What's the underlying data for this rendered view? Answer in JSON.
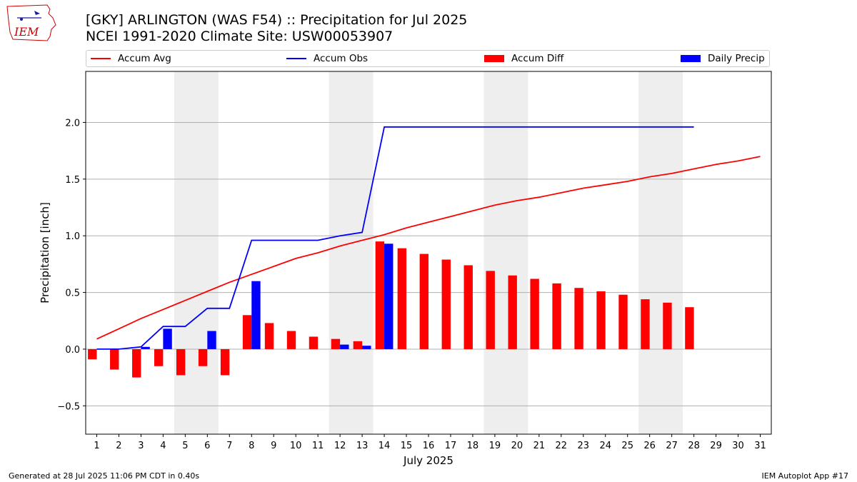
{
  "header": {
    "title_line1": "[GKY] ARLINGTON (WAS F54) :: Precipitation for Jul 2025",
    "title_line2": "NCEI 1991-2020 Climate Site: USW00053907",
    "logo_text": "IEM"
  },
  "footer": {
    "left": "Generated at 28 Jul 2025 11:06 PM CDT in 0.40s",
    "right": "IEM Autoplot App #17"
  },
  "colors": {
    "avg": "#ff0000",
    "obs": "#0000ff",
    "diff": "#ff0000",
    "daily": "#0000ff",
    "weekend": "#eeeeee",
    "grid": "#b0b0b0"
  },
  "chart_data": {
    "type": "bar",
    "xlabel": "July 2025",
    "ylabel": "Precipitation [inch]",
    "ylim": [
      -0.75,
      2.45
    ],
    "xlim": [
      0.5,
      31.5
    ],
    "yticks": [
      -0.5,
      0.0,
      0.5,
      1.0,
      1.5,
      2.0
    ],
    "ytick_labels": [
      "−0.5",
      "0.0",
      "0.5",
      "1.0",
      "1.5",
      "2.0"
    ],
    "xticks": [
      1,
      2,
      3,
      4,
      5,
      6,
      7,
      8,
      9,
      10,
      11,
      12,
      13,
      14,
      15,
      16,
      17,
      18,
      19,
      20,
      21,
      22,
      23,
      24,
      25,
      26,
      27,
      28,
      29,
      30,
      31
    ],
    "xtick_labels": [
      "1",
      "2",
      "3",
      "4",
      "5",
      "6",
      "7",
      "8",
      "9",
      "10",
      "11",
      "12",
      "13",
      "14",
      "15",
      "16",
      "17",
      "18",
      "19",
      "20",
      "21",
      "22",
      "23",
      "24",
      "25",
      "26",
      "27",
      "28",
      "29",
      "30",
      "31"
    ],
    "grid": "horizontal",
    "weekend_shading": [
      [
        5,
        6
      ],
      [
        12,
        13
      ],
      [
        19,
        20
      ],
      [
        26,
        27
      ]
    ],
    "legend": {
      "position": "top",
      "entries": [
        "Accum Avg",
        "Accum Obs",
        "Accum Diff",
        "Daily Precip"
      ]
    },
    "series": [
      {
        "name": "Accum Avg",
        "kind": "line",
        "x": [
          1,
          2,
          3,
          4,
          5,
          6,
          7,
          8,
          9,
          10,
          11,
          12,
          13,
          14,
          15,
          16,
          17,
          18,
          19,
          20,
          21,
          22,
          23,
          24,
          25,
          26,
          27,
          28,
          29,
          30,
          31
        ],
        "values": [
          0.09,
          0.18,
          0.27,
          0.35,
          0.43,
          0.51,
          0.59,
          0.66,
          0.73,
          0.8,
          0.85,
          0.91,
          0.96,
          1.01,
          1.07,
          1.12,
          1.17,
          1.22,
          1.27,
          1.31,
          1.34,
          1.38,
          1.42,
          1.45,
          1.48,
          1.52,
          1.55,
          1.59,
          1.63,
          1.66,
          1.7
        ]
      },
      {
        "name": "Accum Obs",
        "kind": "line",
        "x": [
          1,
          2,
          3,
          4,
          5,
          6,
          7,
          8,
          9,
          10,
          11,
          12,
          13,
          14,
          15,
          16,
          17,
          18,
          19,
          20,
          21,
          22,
          23,
          24,
          25,
          26,
          27,
          28
        ],
        "values": [
          0.0,
          0.0,
          0.02,
          0.2,
          0.2,
          0.36,
          0.36,
          0.96,
          0.96,
          0.96,
          0.96,
          1.0,
          1.03,
          1.96,
          1.96,
          1.96,
          1.96,
          1.96,
          1.96,
          1.96,
          1.96,
          1.96,
          1.96,
          1.96,
          1.96,
          1.96,
          1.96,
          1.96
        ]
      },
      {
        "name": "Accum Diff",
        "kind": "bar",
        "x": [
          1,
          2,
          3,
          4,
          5,
          6,
          7,
          8,
          9,
          10,
          11,
          12,
          13,
          14,
          15,
          16,
          17,
          18,
          19,
          20,
          21,
          22,
          23,
          24,
          25,
          26,
          27,
          28
        ],
        "values": [
          -0.09,
          -0.18,
          -0.25,
          -0.15,
          -0.23,
          -0.15,
          -0.23,
          0.3,
          0.23,
          0.16,
          0.11,
          0.09,
          0.07,
          0.95,
          0.89,
          0.84,
          0.79,
          0.74,
          0.69,
          0.65,
          0.62,
          0.58,
          0.54,
          0.51,
          0.48,
          0.44,
          0.41,
          0.37
        ]
      },
      {
        "name": "Daily Precip",
        "kind": "bar",
        "x": [
          1,
          2,
          3,
          4,
          5,
          6,
          7,
          8,
          9,
          10,
          11,
          12,
          13,
          14,
          15,
          16,
          17,
          18,
          19,
          20,
          21,
          22,
          23,
          24,
          25,
          26,
          27,
          28
        ],
        "values": [
          0.0,
          0.0,
          0.02,
          0.18,
          0.0,
          0.16,
          0.0,
          0.6,
          0.0,
          0.0,
          0.0,
          0.04,
          0.03,
          0.93,
          0.0,
          0.0,
          0.0,
          0.0,
          0.0,
          0.0,
          0.0,
          0.0,
          0.0,
          0.0,
          0.0,
          0.0,
          0.0,
          0.0
        ]
      }
    ]
  }
}
